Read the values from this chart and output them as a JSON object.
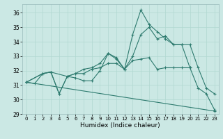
{
  "title": "",
  "xlabel": "Humidex (Indice chaleur)",
  "ylabel": "",
  "bg_color": "#cbe8e4",
  "line_color": "#2d7a6e",
  "grid_color": "#b0d8d0",
  "xlim": [
    -0.5,
    23.5
  ],
  "ylim": [
    29,
    36.6
  ],
  "yticks": [
    29,
    30,
    31,
    32,
    33,
    34,
    35,
    36
  ],
  "xticks": [
    0,
    1,
    2,
    3,
    4,
    5,
    6,
    7,
    8,
    9,
    10,
    11,
    12,
    13,
    14,
    15,
    16,
    17,
    18,
    19,
    20,
    21,
    22,
    23
  ],
  "lines": [
    {
      "x": [
        0,
        1,
        2,
        3,
        4,
        5,
        6,
        7,
        8,
        9,
        10,
        11,
        12,
        13,
        14,
        15,
        16,
        17,
        18,
        19,
        20,
        21,
        22,
        23
      ],
      "y": [
        31.2,
        31.1,
        31.8,
        31.9,
        30.4,
        31.6,
        31.5,
        31.3,
        31.3,
        32.0,
        33.2,
        32.8,
        32.1,
        34.5,
        36.2,
        35.2,
        34.7,
        34.2,
        33.8,
        33.8,
        32.2,
        30.8,
        30.4,
        29.3
      ]
    },
    {
      "x": [
        0,
        2,
        3,
        4,
        5,
        6,
        7,
        8,
        9,
        10,
        11,
        12,
        13,
        14,
        15,
        16,
        17,
        18,
        19,
        20,
        21,
        22,
        23
      ],
      "y": [
        31.2,
        31.8,
        31.9,
        30.4,
        31.6,
        31.8,
        32.1,
        32.2,
        32.5,
        33.2,
        32.9,
        32.1,
        33.0,
        34.5,
        35.0,
        34.2,
        34.4,
        33.8,
        33.8,
        33.8,
        32.2,
        30.8,
        30.4
      ]
    },
    {
      "x": [
        0,
        2,
        3,
        5,
        6,
        7,
        8,
        9,
        10,
        11,
        12,
        13,
        14,
        15,
        16,
        17,
        18,
        19,
        20
      ],
      "y": [
        31.2,
        31.8,
        31.9,
        31.6,
        31.8,
        31.8,
        32.1,
        32.2,
        32.5,
        32.5,
        32.1,
        32.7,
        32.8,
        32.9,
        32.1,
        32.2,
        32.2,
        32.2,
        32.2
      ]
    },
    {
      "x": [
        0,
        23
      ],
      "y": [
        31.2,
        29.2
      ]
    }
  ]
}
